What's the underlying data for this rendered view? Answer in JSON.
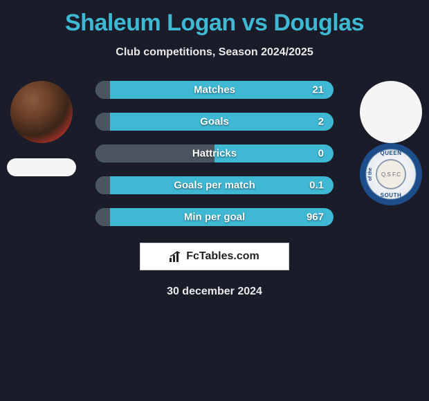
{
  "header": {
    "title": "Shaleum Logan vs Douglas",
    "title_color": "#3fb8d4",
    "title_fontsize": 34,
    "subtitle": "Club competitions, Season 2024/2025",
    "subtitle_color": "#e8e8e8"
  },
  "background_color": "#1a1d29",
  "player_left": {
    "name": "Shaleum Logan",
    "avatar_type": "photo",
    "team_badge_bg": "#f5f5f5"
  },
  "player_right": {
    "name": "Douglas",
    "avatar_type": "blank",
    "team_name": "Queen of the South",
    "team_badge_text_top": "QUEEN",
    "team_badge_text_bottom": "SOUTH",
    "team_badge_text_left": "of the",
    "team_badge_inner": "Q.S F.C",
    "team_badge_colors": {
      "ring": "#1d4e8a",
      "inner": "#f0ede4"
    }
  },
  "stats": {
    "bar_bg_right": "#3fb8d4",
    "bar_bg_left": "#4a555f",
    "rows": [
      {
        "label": "Matches",
        "left_val": "",
        "right_val": "21",
        "left_pct": 6
      },
      {
        "label": "Goals",
        "left_val": "",
        "right_val": "2",
        "left_pct": 6
      },
      {
        "label": "Hattricks",
        "left_val": "",
        "right_val": "0",
        "left_pct": 50
      },
      {
        "label": "Goals per match",
        "left_val": "",
        "right_val": "0.1",
        "left_pct": 6
      },
      {
        "label": "Min per goal",
        "left_val": "",
        "right_val": "967",
        "left_pct": 6
      }
    ]
  },
  "brand": {
    "text": "FcTables.com",
    "icon": "bar-chart-icon"
  },
  "footer": {
    "date": "30 december 2024"
  }
}
